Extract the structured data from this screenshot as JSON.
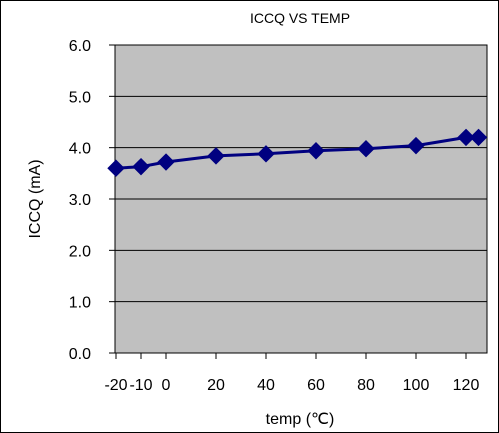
{
  "chart_data": {
    "type": "line",
    "title": "ICCQ VS TEMP",
    "xlabel": "temp (℃)",
    "ylabel": "ICCQ (mA)",
    "x_ticks": [
      "-20",
      "-10",
      "0",
      "20",
      "40",
      "60",
      "80",
      "100",
      "120"
    ],
    "y_ticks": [
      "0.0",
      "1.0",
      "2.0",
      "3.0",
      "4.0",
      "5.0",
      "6.0"
    ],
    "ylim": [
      0,
      6
    ],
    "grid": true,
    "legend": "none",
    "series": [
      {
        "x": [
          -20,
          -10,
          0,
          20,
          40,
          60,
          80,
          100,
          120,
          125
        ],
        "values": [
          3.6,
          3.63,
          3.72,
          3.84,
          3.88,
          3.94,
          3.98,
          4.04,
          4.2,
          4.2
        ]
      }
    ],
    "colors": {
      "plot_area": "#c0c0c0",
      "series": "#000080",
      "grid": "#000000"
    }
  }
}
